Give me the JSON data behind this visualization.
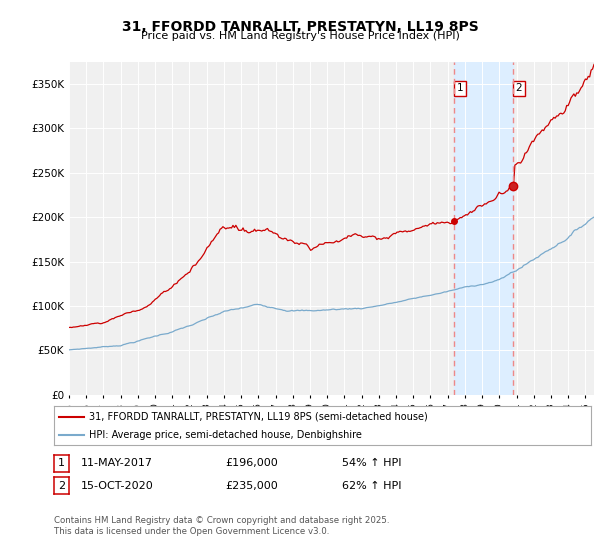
{
  "title": "31, FFORDD TANRALLT, PRESTATYN, LL19 8PS",
  "subtitle": "Price paid vs. HM Land Registry's House Price Index (HPI)",
  "legend_line1": "31, FFORDD TANRALLT, PRESTATYN, LL19 8PS (semi-detached house)",
  "legend_line2": "HPI: Average price, semi-detached house, Denbighshire",
  "red_color": "#cc0000",
  "blue_color": "#7aaacc",
  "vline_color": "#ee8888",
  "shade_color": "#ddeeff",
  "annotation1_label": "1",
  "annotation1_date": "11-MAY-2017",
  "annotation1_price": "£196,000",
  "annotation1_hpi": "54% ↑ HPI",
  "annotation2_label": "2",
  "annotation2_date": "15-OCT-2020",
  "annotation2_price": "£235,000",
  "annotation2_hpi": "62% ↑ HPI",
  "footer": "Contains HM Land Registry data © Crown copyright and database right 2025.\nThis data is licensed under the Open Government Licence v3.0.",
  "ylim": [
    0,
    375000
  ],
  "yticks": [
    0,
    50000,
    100000,
    150000,
    200000,
    250000,
    300000,
    350000
  ],
  "background_color": "#ffffff",
  "plot_bg_color": "#f0f0f0",
  "yr1": 2017.37,
  "yr2": 2020.79,
  "marker1_price": 196000,
  "marker2_price": 235000,
  "xmin": 1995,
  "xmax": 2025.5
}
